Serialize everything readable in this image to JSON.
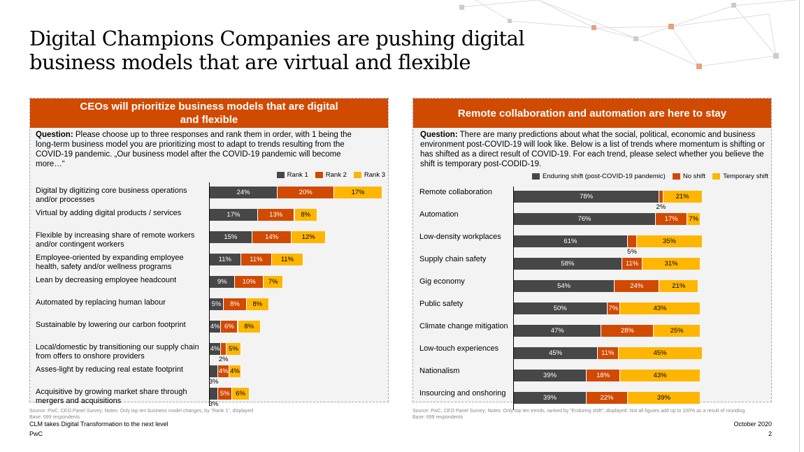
{
  "title": "Digital Champions Companies are pushing digital business models that are virtual and flexible",
  "colors": {
    "dark": "#474747",
    "orange": "#d04a02",
    "yellow": "#ffb600",
    "header": "#d04a02"
  },
  "left": {
    "header": "CEOs will prioritize business models that are digital and flexible",
    "question_label": "Question:",
    "question": " Please choose up to three responses and rank them in order, with 1 being the long-term business model you are prioritizing most to adapt to trends resulting from the COVID-19 pandemic. „Our business model after the COVID-19 pandemic will become more…“",
    "source": "Source: PwC, CEO Panel Survey; Notes: Only top ten business model changes, by \"Rank 1\", displayed",
    "base": "Base: 699 respondents"
  },
  "right": {
    "header": "Remote collaboration and automation are here to stay",
    "question_label": "Question:",
    "question": " There are many predictions about what the social, political, economic and business environment post-COVID-19 will look like. Below is a list of trends where momentum is shifting or has shifted as a direct result of COVID-19. For each trend, please select whether you believe the shift is temporary post-CODID-19.",
    "source": "Source: PwC, CEO Panel Survey; Notes: Only top ten trends, ranked by \"Enduring shift\", displayed. Not all figures add up to 100% as a result of rounding",
    "base": "Base: 699 respondents"
  },
  "chart_data": [
    {
      "type": "bar",
      "orientation": "horizontal",
      "stacked": true,
      "legend": "top-right",
      "categories": [
        "Digital by digitizing core business operations and/or processes",
        "Virtual by adding digital products / services",
        "Flexible by increasing share of remote workers and/or contingent workers",
        "Employee-oriented by expanding employee health, safety and/or wellness programs",
        "Lean by decreasing employee headcount",
        "Automated by replacing human labour",
        "Sustainable by lowering our carbon footprint",
        "Local/domestic by transitioning our supply chain from offers to onshore providers",
        "Asses-light by reducing real estate footprint",
        "Acquisitive by growing market share through mergers and acquisitions"
      ],
      "series": [
        {
          "name": "Rank 1",
          "color": "#474747",
          "values": [
            24,
            17,
            15,
            11,
            9,
            5,
            4,
            4,
            3,
            3
          ]
        },
        {
          "name": "Rank 2",
          "color": "#d04a02",
          "values": [
            20,
            13,
            14,
            11,
            10,
            8,
            6,
            2,
            4,
            5
          ]
        },
        {
          "name": "Rank 3",
          "color": "#ffb600",
          "values": [
            17,
            8,
            12,
            11,
            7,
            8,
            8,
            5,
            4,
            6
          ]
        }
      ]
    },
    {
      "type": "bar",
      "orientation": "horizontal",
      "stacked": true,
      "legend": "top-right",
      "categories": [
        "Remote collaboration",
        "Automation",
        "Low-density workplaces",
        "Supply chain safety",
        "Gig economy",
        "Public safety",
        "Climate change mitigation",
        "Low-touch experiences",
        "Nationalism",
        "Insourcing and onshoring"
      ],
      "series": [
        {
          "name": "Enduring shift (post-COVID-19 pandemic)",
          "color": "#474747",
          "values": [
            78,
            76,
            61,
            58,
            54,
            50,
            47,
            45,
            39,
            39
          ]
        },
        {
          "name": "No shift",
          "color": "#d04a02",
          "values": [
            2,
            17,
            5,
            11,
            24,
            7,
            28,
            11,
            18,
            22
          ]
        },
        {
          "name": "Temporary shift",
          "color": "#ffb600",
          "values": [
            21,
            7,
            35,
            31,
            21,
            43,
            25,
            45,
            43,
            39
          ]
        }
      ]
    }
  ],
  "footer": {
    "left1": "CLM takes Digital Transformation to the next level",
    "left2": "PwC",
    "date": "October 2020",
    "page": "2"
  }
}
